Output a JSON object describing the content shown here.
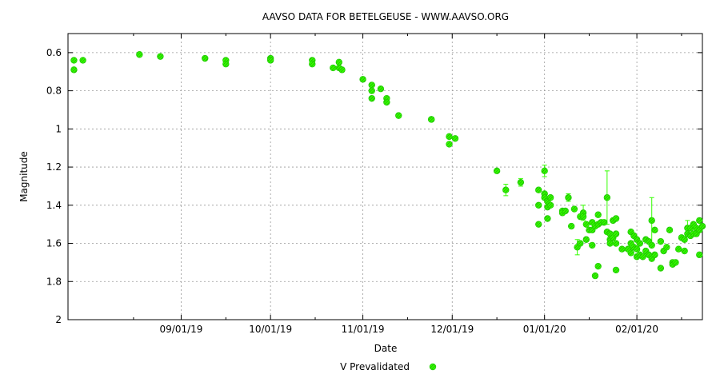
{
  "chart_data": {
    "type": "scatter",
    "title": "AAVSO DATA FOR BETELGEUSE - WWW.AAVSO.ORG",
    "xlabel": "Date",
    "ylabel": "Magnitude",
    "x_is_date": true,
    "xlim": [
      "2019-07-25",
      "2020-02-23"
    ],
    "x_tick_labels": [
      {
        "date": "2019-09-01",
        "label": "09/01/19"
      },
      {
        "date": "2019-10-01",
        "label": "10/01/19"
      },
      {
        "date": "2019-11-01",
        "label": "11/01/19"
      },
      {
        "date": "2019-12-01",
        "label": "12/01/19"
      },
      {
        "date": "2020-01-01",
        "label": "01/01/20"
      },
      {
        "date": "2020-02-01",
        "label": "02/01/20"
      }
    ],
    "x_minor_ticks": [
      "2019-08-16",
      "2019-09-16",
      "2019-10-16",
      "2019-11-16",
      "2019-12-16",
      "2020-01-16",
      "2020-02-16"
    ],
    "ylim": [
      2,
      0.5
    ],
    "y_inverted": true,
    "y_ticks": [
      0.6,
      0.8,
      1,
      1.2,
      1.4,
      1.6,
      1.8,
      2
    ],
    "y_tick_labels": [
      "0.6",
      "0.8",
      "1",
      "1.2",
      "1.4",
      "1.6",
      "1.8",
      "2"
    ],
    "grid": true,
    "legend_position": "bottom-center",
    "series": [
      {
        "name": "V Prevalidated",
        "color": "#33ff00",
        "marker": "circle-hatched",
        "points": [
          {
            "x": "2019-07-27",
            "y": 0.64
          },
          {
            "x": "2019-07-27",
            "y": 0.69
          },
          {
            "x": "2019-07-30",
            "y": 0.64
          },
          {
            "x": "2019-08-18",
            "y": 0.61
          },
          {
            "x": "2019-08-25",
            "y": 0.62
          },
          {
            "x": "2019-09-09",
            "y": 0.63
          },
          {
            "x": "2019-09-16",
            "y": 0.64
          },
          {
            "x": "2019-09-16",
            "y": 0.66
          },
          {
            "x": "2019-10-01",
            "y": 0.63
          },
          {
            "x": "2019-10-01",
            "y": 0.64
          },
          {
            "x": "2019-10-15",
            "y": 0.64
          },
          {
            "x": "2019-10-15",
            "y": 0.66
          },
          {
            "x": "2019-10-22",
            "y": 0.68
          },
          {
            "x": "2019-10-24",
            "y": 0.65
          },
          {
            "x": "2019-10-24",
            "y": 0.68
          },
          {
            "x": "2019-10-25",
            "y": 0.69
          },
          {
            "x": "2019-11-01",
            "y": 0.74
          },
          {
            "x": "2019-11-04",
            "y": 0.77
          },
          {
            "x": "2019-11-04",
            "y": 0.8
          },
          {
            "x": "2019-11-04",
            "y": 0.84
          },
          {
            "x": "2019-11-07",
            "y": 0.79
          },
          {
            "x": "2019-11-09",
            "y": 0.84
          },
          {
            "x": "2019-11-09",
            "y": 0.86
          },
          {
            "x": "2019-11-13",
            "y": 0.93
          },
          {
            "x": "2019-11-24",
            "y": 0.95
          },
          {
            "x": "2019-11-24",
            "y": 0.95
          },
          {
            "x": "2019-11-30",
            "y": 1.04
          },
          {
            "x": "2019-11-30",
            "y": 1.08
          },
          {
            "x": "2019-12-02",
            "y": 1.05
          },
          {
            "x": "2019-12-16",
            "y": 1.22
          },
          {
            "x": "2019-12-19",
            "y": 1.32,
            "err": 0.03
          },
          {
            "x": "2019-12-24",
            "y": 1.28,
            "err": 0.02
          },
          {
            "x": "2019-12-30",
            "y": 1.32
          },
          {
            "x": "2019-12-30",
            "y": 1.4
          },
          {
            "x": "2019-12-30",
            "y": 1.5
          },
          {
            "x": "2020-01-01",
            "y": 1.22,
            "err": 0.03
          },
          {
            "x": "2020-01-01",
            "y": 1.34
          },
          {
            "x": "2020-01-01",
            "y": 1.36
          },
          {
            "x": "2020-01-02",
            "y": 1.38
          },
          {
            "x": "2020-01-02",
            "y": 1.41
          },
          {
            "x": "2020-01-02",
            "y": 1.47
          },
          {
            "x": "2020-01-03",
            "y": 1.36
          },
          {
            "x": "2020-01-03",
            "y": 1.4
          },
          {
            "x": "2020-01-07",
            "y": 1.43
          },
          {
            "x": "2020-01-07",
            "y": 1.44
          },
          {
            "x": "2020-01-08",
            "y": 1.43
          },
          {
            "x": "2020-01-09",
            "y": 1.36,
            "err": 0.02
          },
          {
            "x": "2020-01-10",
            "y": 1.51
          },
          {
            "x": "2020-01-11",
            "y": 1.42
          },
          {
            "x": "2020-01-12",
            "y": 1.62,
            "err": 0.04
          },
          {
            "x": "2020-01-13",
            "y": 1.46
          },
          {
            "x": "2020-01-13",
            "y": 1.6
          },
          {
            "x": "2020-01-14",
            "y": 1.44,
            "err": 0.04
          },
          {
            "x": "2020-01-14",
            "y": 1.46
          },
          {
            "x": "2020-01-15",
            "y": 1.5
          },
          {
            "x": "2020-01-15",
            "y": 1.58
          },
          {
            "x": "2020-01-16",
            "y": 1.53
          },
          {
            "x": "2020-01-17",
            "y": 1.49
          },
          {
            "x": "2020-01-17",
            "y": 1.53
          },
          {
            "x": "2020-01-17",
            "y": 1.61
          },
          {
            "x": "2020-01-18",
            "y": 1.51
          },
          {
            "x": "2020-01-18",
            "y": 1.77
          },
          {
            "x": "2020-01-19",
            "y": 1.45
          },
          {
            "x": "2020-01-19",
            "y": 1.5
          },
          {
            "x": "2020-01-19",
            "y": 1.72
          },
          {
            "x": "2020-01-20",
            "y": 1.49
          },
          {
            "x": "2020-01-21",
            "y": 1.49
          },
          {
            "x": "2020-01-22",
            "y": 1.36,
            "err": 0.14
          },
          {
            "x": "2020-01-22",
            "y": 1.54
          },
          {
            "x": "2020-01-23",
            "y": 1.55
          },
          {
            "x": "2020-01-23",
            "y": 1.58
          },
          {
            "x": "2020-01-23",
            "y": 1.6
          },
          {
            "x": "2020-01-24",
            "y": 1.48
          },
          {
            "x": "2020-01-24",
            "y": 1.57
          },
          {
            "x": "2020-01-25",
            "y": 1.47
          },
          {
            "x": "2020-01-25",
            "y": 1.55
          },
          {
            "x": "2020-01-25",
            "y": 1.6
          },
          {
            "x": "2020-01-25",
            "y": 1.74
          },
          {
            "x": "2020-01-27",
            "y": 1.63
          },
          {
            "x": "2020-01-29",
            "y": 1.63
          },
          {
            "x": "2020-01-30",
            "y": 1.54
          },
          {
            "x": "2020-01-30",
            "y": 1.6
          },
          {
            "x": "2020-01-30",
            "y": 1.65
          },
          {
            "x": "2020-01-31",
            "y": 1.56
          },
          {
            "x": "2020-01-31",
            "y": 1.62
          },
          {
            "x": "2020-02-01",
            "y": 1.58
          },
          {
            "x": "2020-02-01",
            "y": 1.63
          },
          {
            "x": "2020-02-01",
            "y": 1.67
          },
          {
            "x": "2020-02-02",
            "y": 1.6
          },
          {
            "x": "2020-02-02",
            "y": 1.66
          },
          {
            "x": "2020-02-03",
            "y": 1.67
          },
          {
            "x": "2020-02-04",
            "y": 1.58
          },
          {
            "x": "2020-02-04",
            "y": 1.64
          },
          {
            "x": "2020-02-05",
            "y": 1.59
          },
          {
            "x": "2020-02-05",
            "y": 1.66
          },
          {
            "x": "2020-02-06",
            "y": 1.48,
            "err": 0.12
          },
          {
            "x": "2020-02-06",
            "y": 1.61
          },
          {
            "x": "2020-02-06",
            "y": 1.68
          },
          {
            "x": "2020-02-07",
            "y": 1.53
          },
          {
            "x": "2020-02-07",
            "y": 1.66
          },
          {
            "x": "2020-02-09",
            "y": 1.59
          },
          {
            "x": "2020-02-09",
            "y": 1.73
          },
          {
            "x": "2020-02-10",
            "y": 1.64
          },
          {
            "x": "2020-02-11",
            "y": 1.62
          },
          {
            "x": "2020-02-12",
            "y": 1.53
          },
          {
            "x": "2020-02-13",
            "y": 1.7
          },
          {
            "x": "2020-02-13",
            "y": 1.71
          },
          {
            "x": "2020-02-14",
            "y": 1.7
          },
          {
            "x": "2020-02-15",
            "y": 1.63
          },
          {
            "x": "2020-02-16",
            "y": 1.57
          },
          {
            "x": "2020-02-17",
            "y": 1.58
          },
          {
            "x": "2020-02-17",
            "y": 1.64
          },
          {
            "x": "2020-02-18",
            "y": 1.52,
            "err": 0.04
          },
          {
            "x": "2020-02-18",
            "y": 1.55
          },
          {
            "x": "2020-02-19",
            "y": 1.52
          },
          {
            "x": "2020-02-19",
            "y": 1.56
          },
          {
            "x": "2020-02-20",
            "y": 1.5
          },
          {
            "x": "2020-02-20",
            "y": 1.55
          },
          {
            "x": "2020-02-21",
            "y": 1.52
          },
          {
            "x": "2020-02-21",
            "y": 1.55
          },
          {
            "x": "2020-02-22",
            "y": 1.48
          },
          {
            "x": "2020-02-22",
            "y": 1.53
          },
          {
            "x": "2020-02-22",
            "y": 1.66
          },
          {
            "x": "2020-02-23",
            "y": 1.51
          }
        ]
      }
    ]
  }
}
